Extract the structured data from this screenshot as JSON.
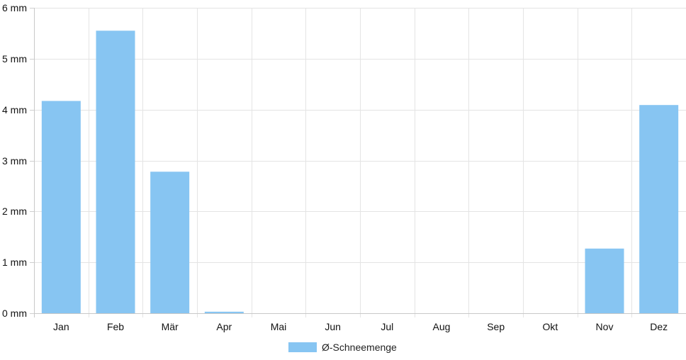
{
  "chart_data": {
    "type": "bar",
    "categories": [
      "Jan",
      "Feb",
      "Mär",
      "Apr",
      "Mai",
      "Jun",
      "Jul",
      "Aug",
      "Sep",
      "Okt",
      "Nov",
      "Dez"
    ],
    "series": [
      {
        "name": "Ø-Schneemenge",
        "values": [
          4.17,
          5.55,
          2.78,
          0.03,
          0,
          0,
          0,
          0,
          0,
          0,
          1.27,
          4.09
        ],
        "color": "#87c5f2"
      }
    ],
    "y_ticks": [
      "0 mm",
      "1 mm",
      "2 mm",
      "3 mm",
      "4 mm",
      "5 mm",
      "6 mm"
    ],
    "ylim": [
      0,
      6
    ],
    "grid": true,
    "legend_position": "bottom"
  }
}
